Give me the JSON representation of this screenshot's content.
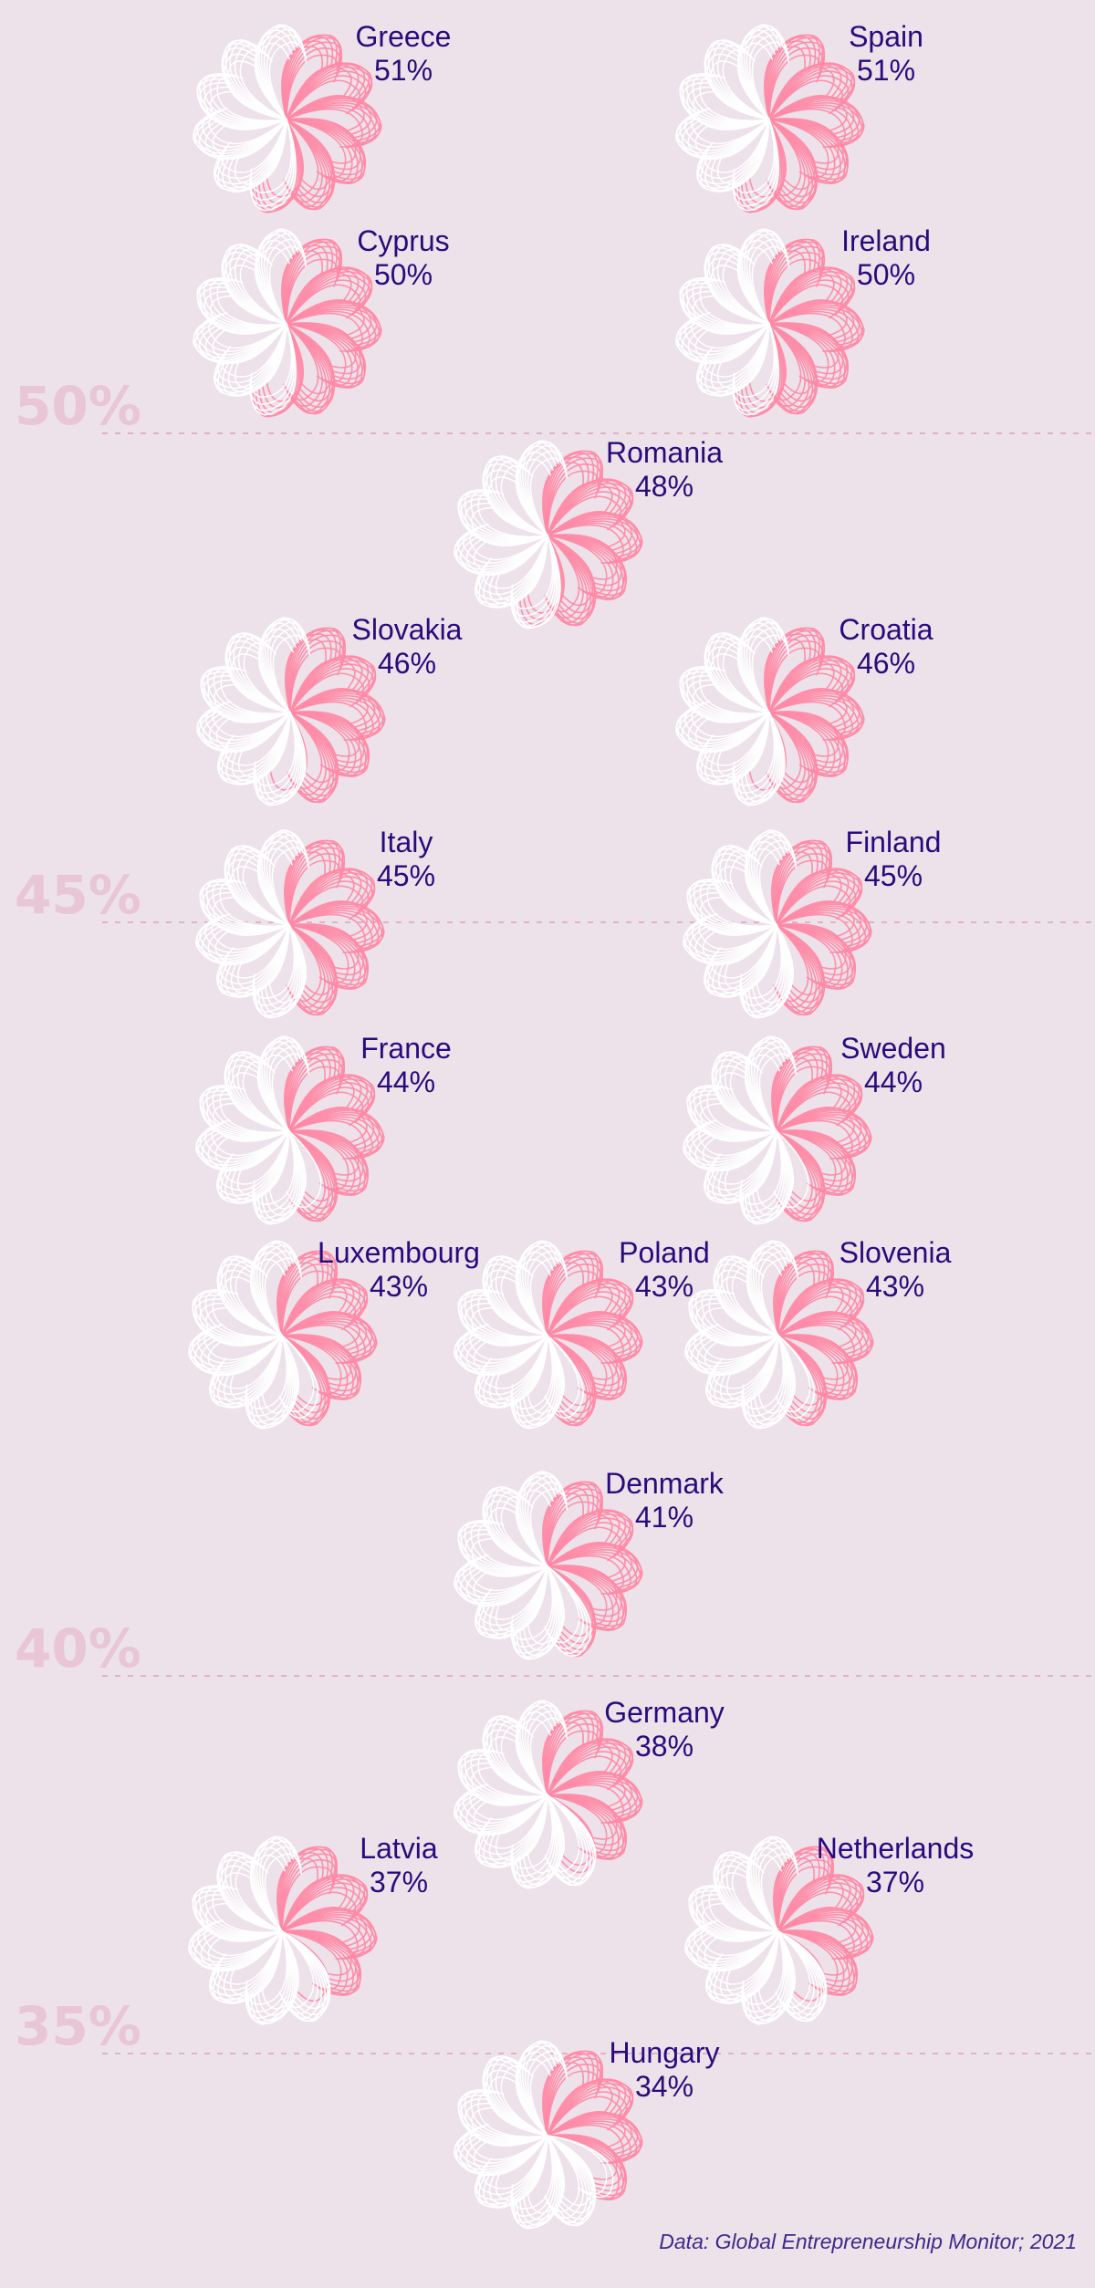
{
  "chart_data": {
    "type": "pictogram",
    "description_unit": "percent",
    "colors": {
      "filled": "#ff8aa6",
      "empty": "#ffffff",
      "text": "#2b0a7c",
      "grid": "#dfb2c5",
      "grid_label": "#e8c6d4",
      "background": "#ede1ea"
    },
    "gridlines": [
      {
        "value": 50,
        "label": "50%"
      },
      {
        "value": 45,
        "label": "45%"
      },
      {
        "value": 40,
        "label": "40%"
      },
      {
        "value": 35,
        "label": "35%"
      }
    ],
    "points": [
      {
        "country": "Greece",
        "value": 51,
        "label": "51%"
      },
      {
        "country": "Spain",
        "value": 51,
        "label": "51%"
      },
      {
        "country": "Cyprus",
        "value": 50,
        "label": "50%"
      },
      {
        "country": "Ireland",
        "value": 50,
        "label": "50%"
      },
      {
        "country": "Romania",
        "value": 48,
        "label": "48%"
      },
      {
        "country": "Slovakia",
        "value": 46,
        "label": "46%"
      },
      {
        "country": "Croatia",
        "value": 46,
        "label": "46%"
      },
      {
        "country": "Italy",
        "value": 45,
        "label": "45%"
      },
      {
        "country": "Finland",
        "value": 45,
        "label": "45%"
      },
      {
        "country": "France",
        "value": 44,
        "label": "44%"
      },
      {
        "country": "Sweden",
        "value": 44,
        "label": "44%"
      },
      {
        "country": "Luxembourg",
        "value": 43,
        "label": "43%"
      },
      {
        "country": "Poland",
        "value": 43,
        "label": "43%"
      },
      {
        "country": "Slovenia",
        "value": 43,
        "label": "43%"
      },
      {
        "country": "Denmark",
        "value": 41,
        "label": "41%"
      },
      {
        "country": "Germany",
        "value": 38,
        "label": "38%"
      },
      {
        "country": "Latvia",
        "value": 37,
        "label": "37%"
      },
      {
        "country": "Netherlands",
        "value": 37,
        "label": "37%"
      },
      {
        "country": "Hungary",
        "value": 34,
        "label": "34%"
      }
    ]
  },
  "source": "Data: Global Entrepreneurship Monitor; 2021"
}
